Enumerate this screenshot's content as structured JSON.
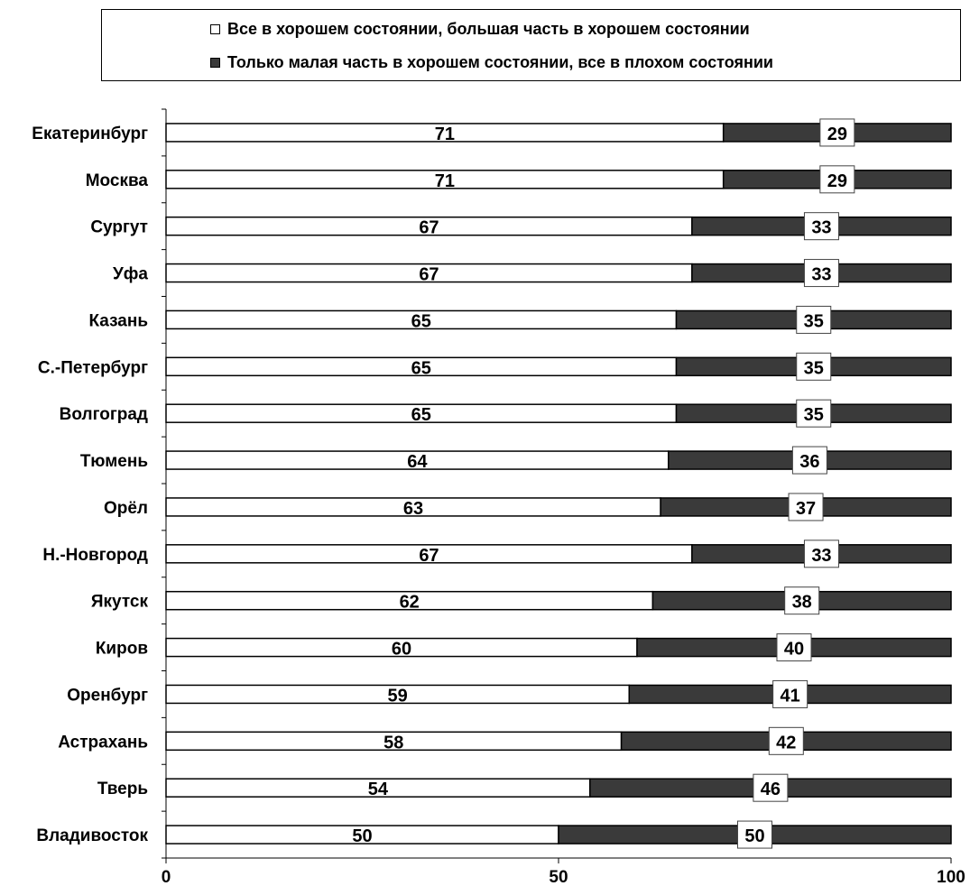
{
  "chart_data": {
    "type": "bar",
    "orientation": "horizontal",
    "stacked": true,
    "categories": [
      "Екатеринбург",
      "Москва",
      "Сургут",
      "Уфа",
      "Казань",
      "С.-Петербург",
      "Волгоград",
      "Тюмень",
      "Орёл",
      "Н.-Новгород",
      "Якутск",
      "Киров",
      "Оренбург",
      "Астрахань",
      "Тверь",
      "Владивосток"
    ],
    "series": [
      {
        "name": "Все в хорошем состоянии, большая часть в хорошем состоянии",
        "color": "#ffffff",
        "values": [
          71,
          71,
          67,
          67,
          65,
          65,
          65,
          64,
          63,
          67,
          62,
          60,
          59,
          58,
          54,
          50
        ]
      },
      {
        "name": "Только малая часть в хорошем состоянии, все в плохом состоянии",
        "color": "#3a3a3a",
        "values": [
          29,
          29,
          33,
          33,
          35,
          35,
          35,
          36,
          37,
          33,
          38,
          40,
          41,
          42,
          46,
          50
        ]
      }
    ],
    "xlim": [
      0,
      100
    ],
    "xticks": [
      0,
      50,
      100
    ],
    "title": "",
    "xlabel": "",
    "ylabel": "",
    "legend_position": "top",
    "grid": false
  }
}
